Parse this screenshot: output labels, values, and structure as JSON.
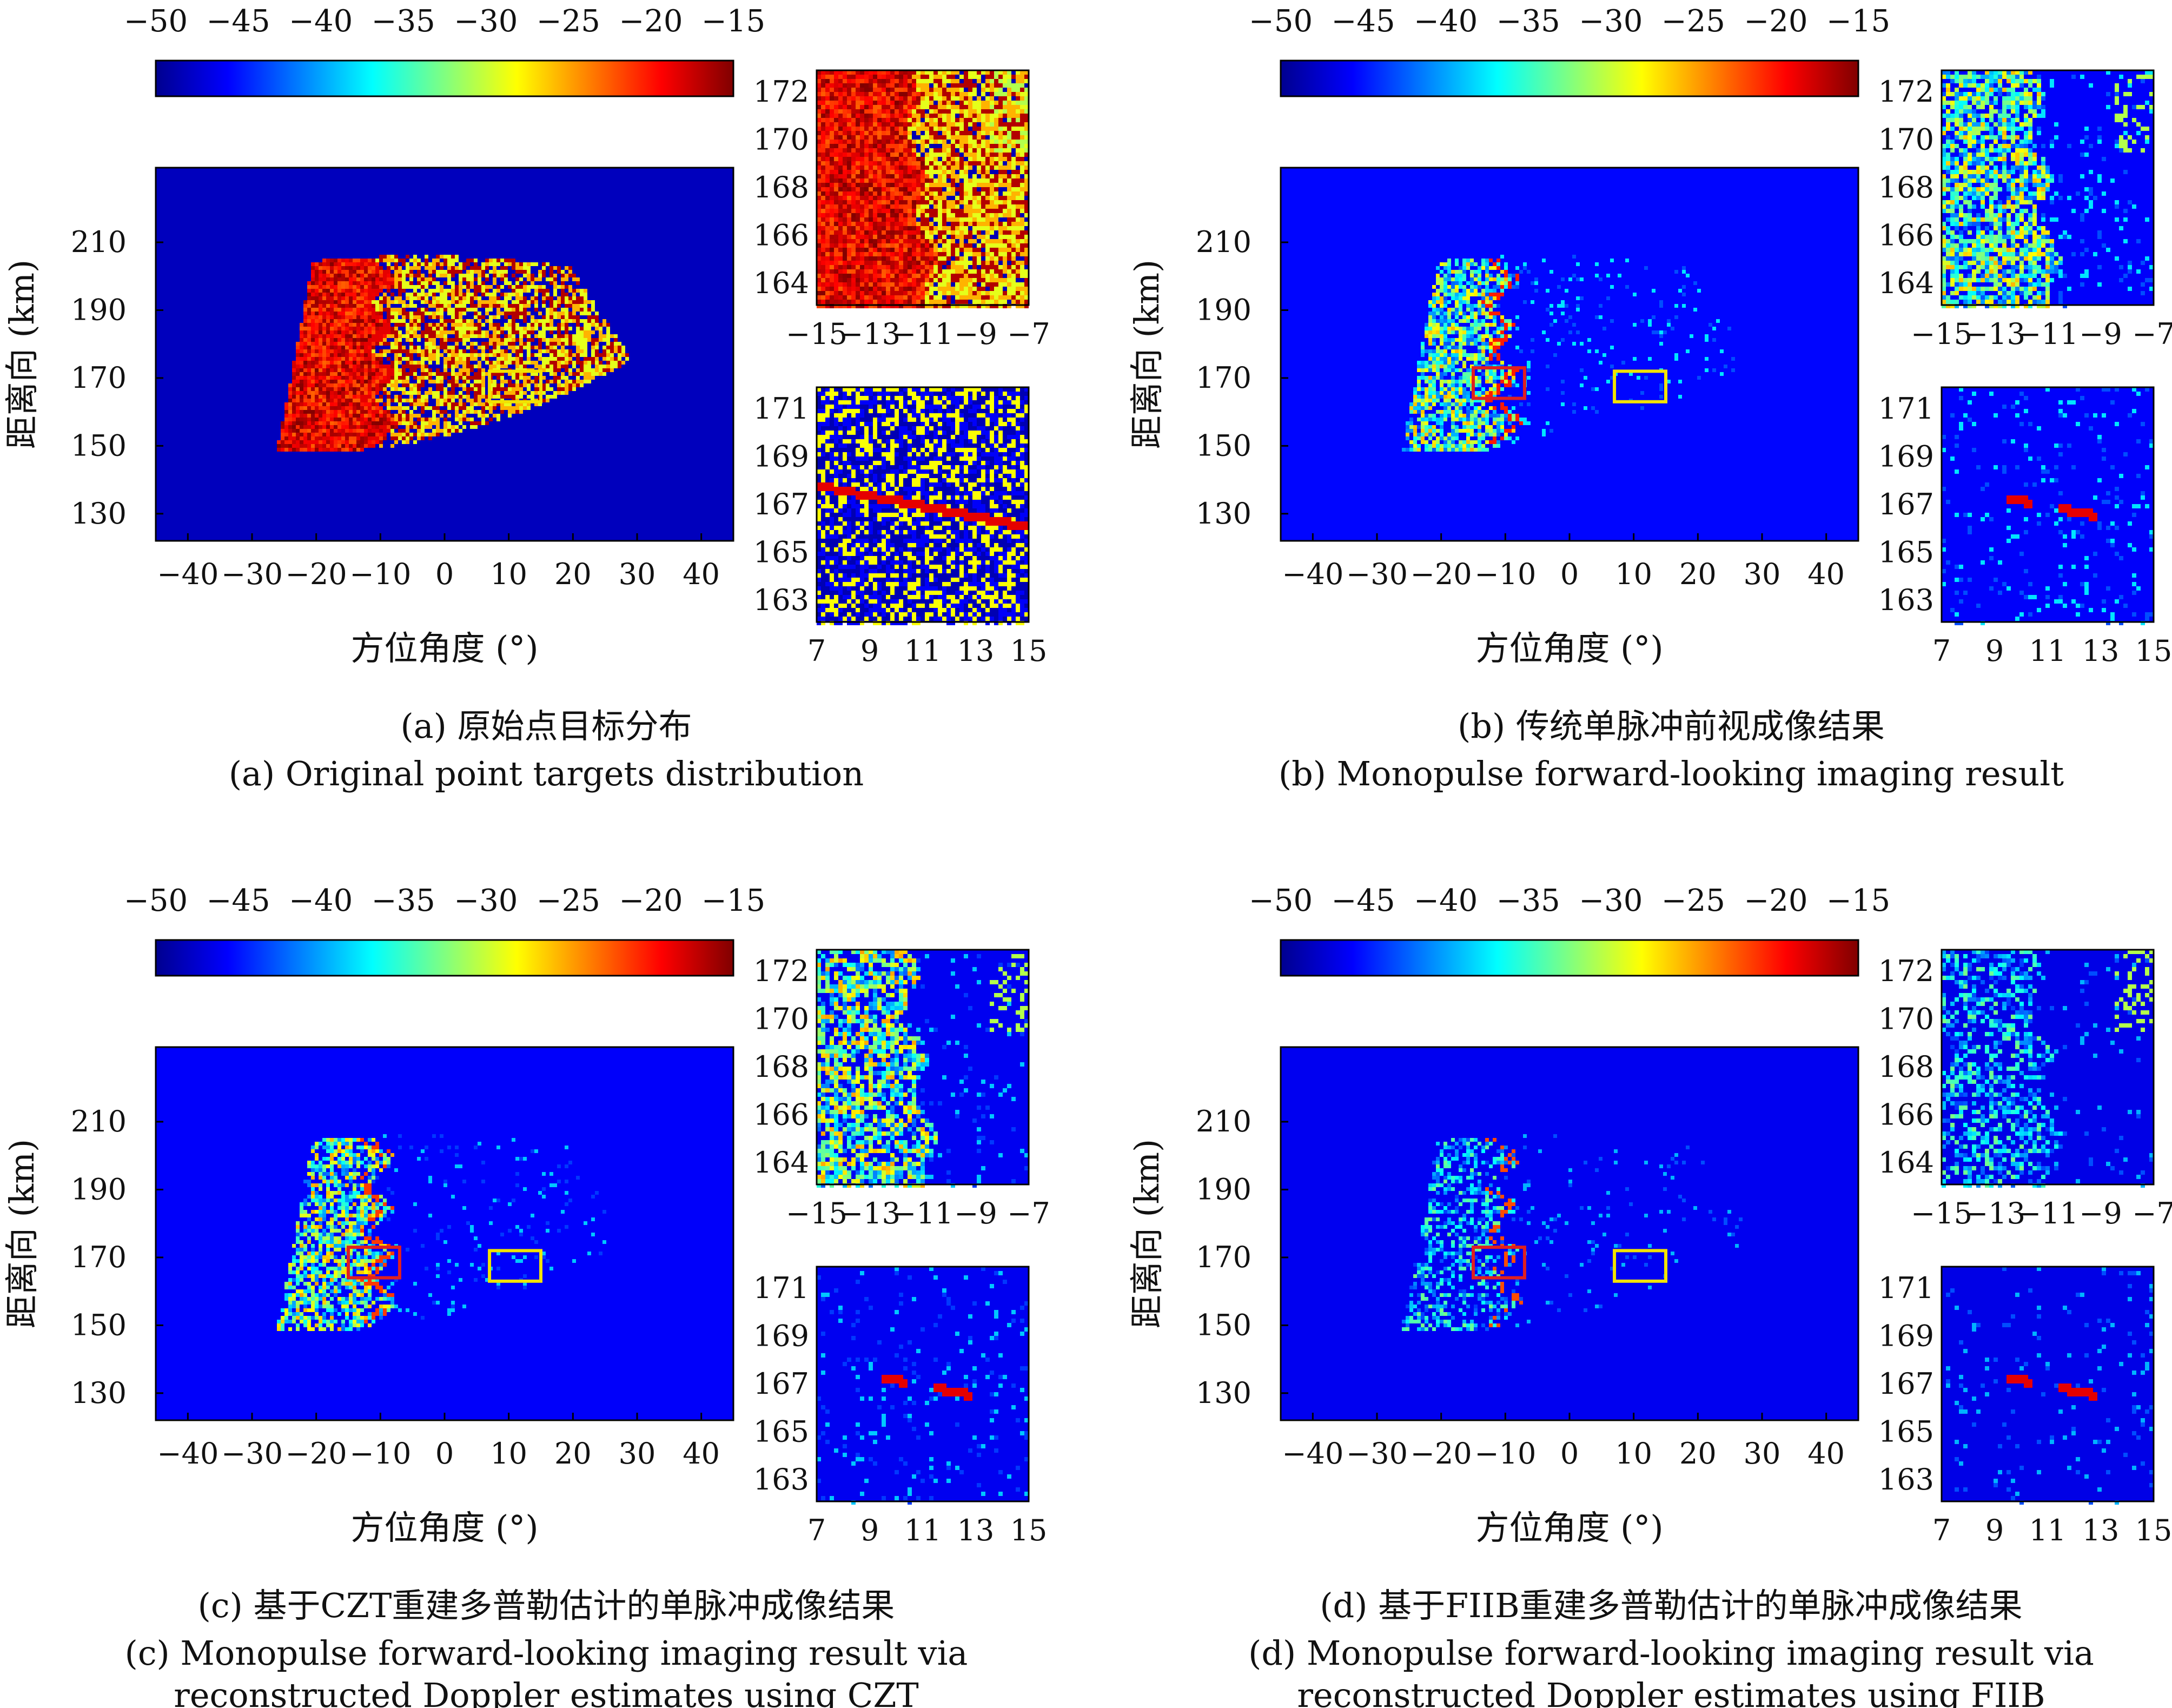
{
  "figure": {
    "colorbar": {
      "colormap": "jet",
      "range": [
        -50,
        -15
      ],
      "ticks": [
        "-50",
        "-45",
        "-40",
        "-35",
        "-30",
        "-25",
        "-20",
        "-15"
      ]
    },
    "panels": [
      {
        "id": "a",
        "caption_cn": "(a) 原始点目标分布",
        "caption_en": [
          "(a) Original point targets distribution"
        ],
        "xlabel": "方位角度 (°)",
        "ylabel": "距离向 (km)",
        "xticks": [
          "-40",
          "-30",
          "-20",
          "-10",
          "0",
          "10",
          "20",
          "30",
          "40"
        ],
        "yticks": [
          "210",
          "190",
          "170",
          "150",
          "130"
        ],
        "boxes": [
          {
            "color": "#f2e200",
            "azimuth": [
              7,
              15
            ],
            "range": [
              163,
              172
            ]
          }
        ],
        "zoom_top": {
          "xticks": [
            "-15",
            "-13",
            "-11",
            "-9",
            "-7"
          ],
          "yticks": [
            "172",
            "170",
            "168",
            "166",
            "164"
          ]
        },
        "zoom_bottom": {
          "xticks": [
            "7",
            "9",
            "11",
            "13",
            "15"
          ],
          "yticks": [
            "171",
            "169",
            "167",
            "165",
            "163"
          ]
        }
      },
      {
        "id": "b",
        "caption_cn": "(b) 传统单脉冲前视成像结果",
        "caption_en": [
          "(b) Monopulse forward-looking imaging result"
        ],
        "xlabel": "方位角度 (°)",
        "ylabel": "距离向 (km)",
        "xticks": [
          "-40",
          "-30",
          "-20",
          "-10",
          "0",
          "10",
          "20",
          "30",
          "40"
        ],
        "yticks": [
          "210",
          "190",
          "170",
          "150",
          "130"
        ],
        "boxes": [
          {
            "color": "#e02020",
            "azimuth": [
              -15,
              -7
            ],
            "range": [
              164,
              173
            ]
          },
          {
            "color": "#f2e200",
            "azimuth": [
              7,
              15
            ],
            "range": [
              163,
              172
            ]
          }
        ],
        "zoom_top": {
          "xticks": [
            "-15",
            "-13",
            "-11",
            "-9",
            "-7"
          ],
          "yticks": [
            "172",
            "170",
            "168",
            "166",
            "164"
          ]
        },
        "zoom_bottom": {
          "xticks": [
            "7",
            "9",
            "11",
            "13",
            "15"
          ],
          "yticks": [
            "171",
            "169",
            "167",
            "165",
            "163"
          ]
        }
      },
      {
        "id": "c",
        "caption_cn": "(c) 基于CZT重建多普勒估计的单脉冲成像结果",
        "caption_en": [
          "(c) Monopulse forward-looking imaging result via",
          "reconstructed Doppler estimates using CZT"
        ],
        "xlabel": "方位角度 (°)",
        "ylabel": "距离向 (km)",
        "xticks": [
          "-40",
          "-30",
          "-20",
          "-10",
          "0",
          "10",
          "20",
          "30",
          "40"
        ],
        "yticks": [
          "210",
          "190",
          "170",
          "150",
          "130"
        ],
        "boxes": [
          {
            "color": "#e02020",
            "azimuth": [
              -15,
              -7
            ],
            "range": [
              164,
              173
            ]
          },
          {
            "color": "#f2e200",
            "azimuth": [
              7,
              15
            ],
            "range": [
              163,
              172
            ]
          }
        ],
        "zoom_top": {
          "xticks": [
            "-15",
            "-13",
            "-11",
            "-9",
            "-7"
          ],
          "yticks": [
            "172",
            "170",
            "168",
            "166",
            "164"
          ]
        },
        "zoom_bottom": {
          "xticks": [
            "7",
            "9",
            "11",
            "13",
            "15"
          ],
          "yticks": [
            "171",
            "169",
            "167",
            "165",
            "163"
          ]
        }
      },
      {
        "id": "d",
        "caption_cn": "(d) 基于FIIB重建多普勒估计的单脉冲成像结果",
        "caption_en": [
          "(d) Monopulse forward-looking imaging result via",
          "reconstructed Doppler estimates using FIIB"
        ],
        "xlabel": "方位角度 (°)",
        "ylabel": "距离向 (km)",
        "xticks": [
          "-40",
          "-30",
          "-20",
          "-10",
          "0",
          "10",
          "20",
          "30",
          "40"
        ],
        "yticks": [
          "210",
          "190",
          "170",
          "150",
          "130"
        ],
        "boxes": [
          {
            "color": "#e02020",
            "azimuth": [
              -15,
              -7
            ],
            "range": [
              164,
              173
            ]
          },
          {
            "color": "#f2e200",
            "azimuth": [
              7,
              15
            ],
            "range": [
              163,
              172
            ]
          }
        ],
        "zoom_top": {
          "xticks": [
            "-15",
            "-13",
            "-11",
            "-9",
            "-7"
          ],
          "yticks": [
            "172",
            "170",
            "168",
            "166",
            "164"
          ]
        },
        "zoom_bottom": {
          "xticks": [
            "7",
            "9",
            "11",
            "13",
            "15"
          ],
          "yticks": [
            "171",
            "169",
            "167",
            "165",
            "163"
          ]
        }
      }
    ]
  },
  "chart_data": [
    {
      "type": "heatmap",
      "panel": "a",
      "xlim": [
        -45,
        45
      ],
      "ylim": [
        122,
        232
      ],
      "colormap": "jet",
      "zlim": [
        -50,
        -15
      ],
      "grid": false,
      "legend": "colorbar top"
    },
    {
      "type": "heatmap",
      "panel": "b",
      "xlim": [
        -45,
        45
      ],
      "ylim": [
        122,
        232
      ],
      "colormap": "jet",
      "zlim": [
        -50,
        -15
      ],
      "grid": false,
      "legend": "colorbar top"
    },
    {
      "type": "heatmap",
      "panel": "c",
      "xlim": [
        -45,
        45
      ],
      "ylim": [
        122,
        232
      ],
      "colormap": "jet",
      "zlim": [
        -50,
        -15
      ],
      "grid": false,
      "legend": "colorbar top"
    },
    {
      "type": "heatmap",
      "panel": "d",
      "xlim": [
        -45,
        45
      ],
      "ylim": [
        122,
        232
      ],
      "colormap": "jet",
      "zlim": [
        -50,
        -15
      ],
      "grid": false,
      "legend": "colorbar top"
    }
  ]
}
